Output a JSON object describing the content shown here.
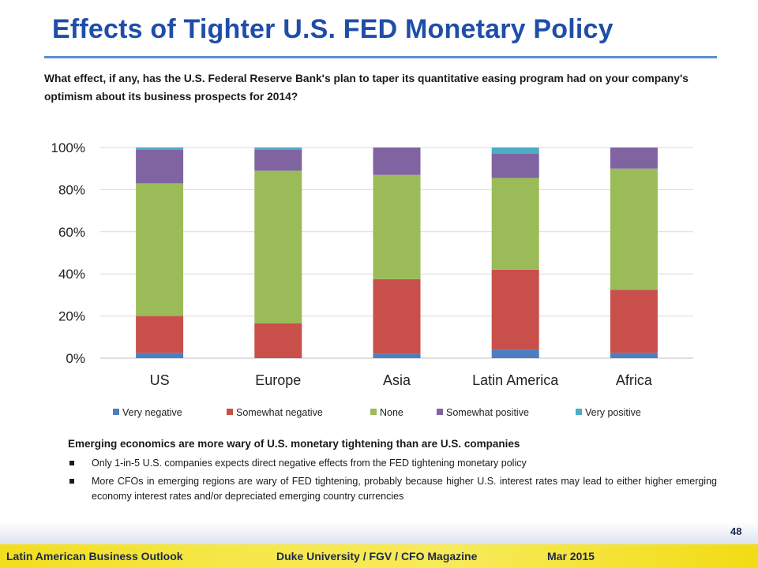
{
  "slide": {
    "title": "Effects of Tighter U.S. FED Monetary Policy",
    "question": "What effect, if any, has the U.S. Federal Reserve Bank's plan to taper its quantitative easing program had on your company's optimism about its business prospects for 2014?"
  },
  "chart_data": {
    "type": "bar",
    "stacked": true,
    "categories": [
      "US",
      "Europe",
      "Asia",
      "Latin America",
      "Africa"
    ],
    "series": [
      {
        "name": "Very negative",
        "color": "#4a7fc1",
        "values": [
          2.5,
          0,
          2,
          4,
          2.5
        ]
      },
      {
        "name": "Somewhat negative",
        "color": "#c9504a",
        "values": [
          17.5,
          16.5,
          35.5,
          38,
          30
        ]
      },
      {
        "name": "None",
        "color": "#9bbb59",
        "values": [
          63,
          72.5,
          49.5,
          43.5,
          57.5
        ]
      },
      {
        "name": "Somewhat positive",
        "color": "#8064a2",
        "values": [
          16,
          10,
          13,
          11.5,
          10
        ]
      },
      {
        "name": "Very positive",
        "color": "#4bacc6",
        "values": [
          1,
          1,
          0,
          3,
          0
        ]
      }
    ],
    "ylim": [
      0,
      100
    ],
    "yticks": [
      "0%",
      "20%",
      "40%",
      "60%",
      "80%",
      "100%"
    ],
    "grid": true,
    "legend_position": "bottom"
  },
  "notes": {
    "heading": "Emerging economics are more wary of U.S. monetary tightening than are U.S. companies",
    "bullets": [
      "Only 1-in-5 U.S. companies expects direct negative effects from the FED tightening monetary policy",
      "More CFOs in emerging regions are wary of FED tightening, probably because higher U.S. interest rates may lead to either higher emerging economy interest rates and/or depreciated emerging country currencies"
    ]
  },
  "footer": {
    "left": "Latin American Business Outlook",
    "center": "Duke University / FGV / CFO Magazine",
    "date": "Mar 2015",
    "page": "48"
  }
}
